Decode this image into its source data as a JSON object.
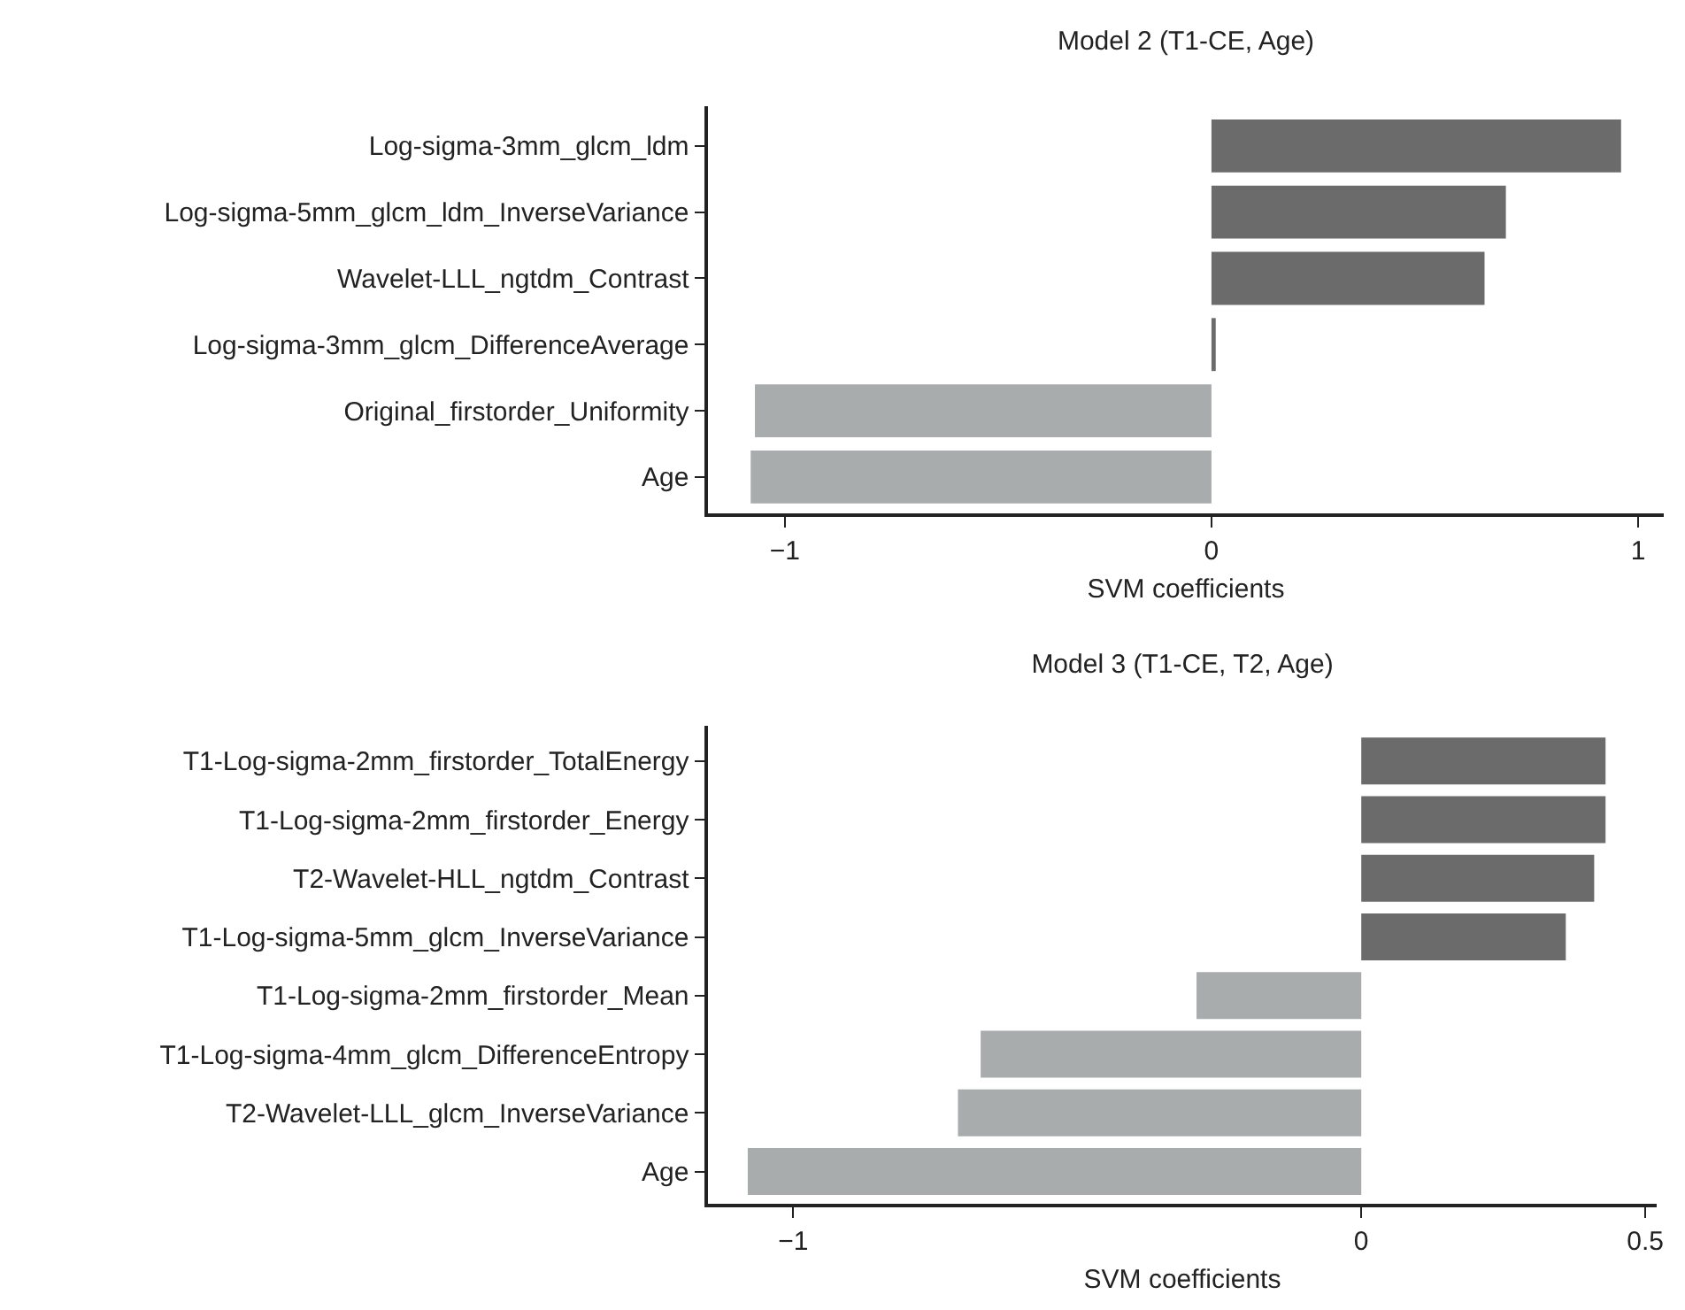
{
  "chart_data": [
    {
      "type": "bar",
      "orientation": "horizontal",
      "title": "Model 2 (T1-CE, Age)",
      "xlabel": "SVM coefficients",
      "categories": [
        "Log-sigma-3mm_glcm_ldm",
        "Log-sigma-5mm_glcm_ldm_InverseVariance",
        "Wavelet-LLL_ngtdm_Contrast",
        "Log-sigma-3mm_glcm_DifferenceAverage",
        "Original_firstorder_Uniformity",
        "Age"
      ],
      "values": [
        0.96,
        0.69,
        0.64,
        0.01,
        -1.07,
        -1.08
      ],
      "colors": [
        "#6b6b6b",
        "#6b6b6b",
        "#6b6b6b",
        "#6b6b6b",
        "#a9acad",
        "#a9acad"
      ],
      "xlim": [
        -1.18,
        1.06
      ],
      "xticks": [
        {
          "value": -1,
          "label": "−1"
        },
        0,
        1
      ],
      "grid": false
    },
    {
      "type": "bar",
      "orientation": "horizontal",
      "title": "Model 3 (T1-CE, T2, Age)",
      "xlabel": "SVM coefficients",
      "categories": [
        "T1-Log-sigma-2mm_firstorder_TotalEnergy",
        "T1-Log-sigma-2mm_firstorder_Energy",
        "T2-Wavelet-HLL_ngtdm_Contrast",
        "T1-Log-sigma-5mm_glcm_InverseVariance",
        "T1-Log-sigma-2mm_firstorder_Mean",
        "T1-Log-sigma-4mm_glcm_DifferenceEntropy",
        "T2-Wavelet-LLL_glcm_InverseVariance",
        "Age"
      ],
      "values": [
        0.43,
        0.43,
        0.41,
        0.36,
        -0.29,
        -0.67,
        -0.71,
        -1.08
      ],
      "colors": [
        "#6b6b6b",
        "#6b6b6b",
        "#6b6b6b",
        "#6b6b6b",
        "#a9acad",
        "#a9acad",
        "#a9acad",
        "#a9acad"
      ],
      "xlim": [
        -1.15,
        0.52
      ],
      "xticks": [
        {
          "value": -1,
          "label": "−1"
        },
        0,
        0.5
      ],
      "grid": false
    }
  ]
}
